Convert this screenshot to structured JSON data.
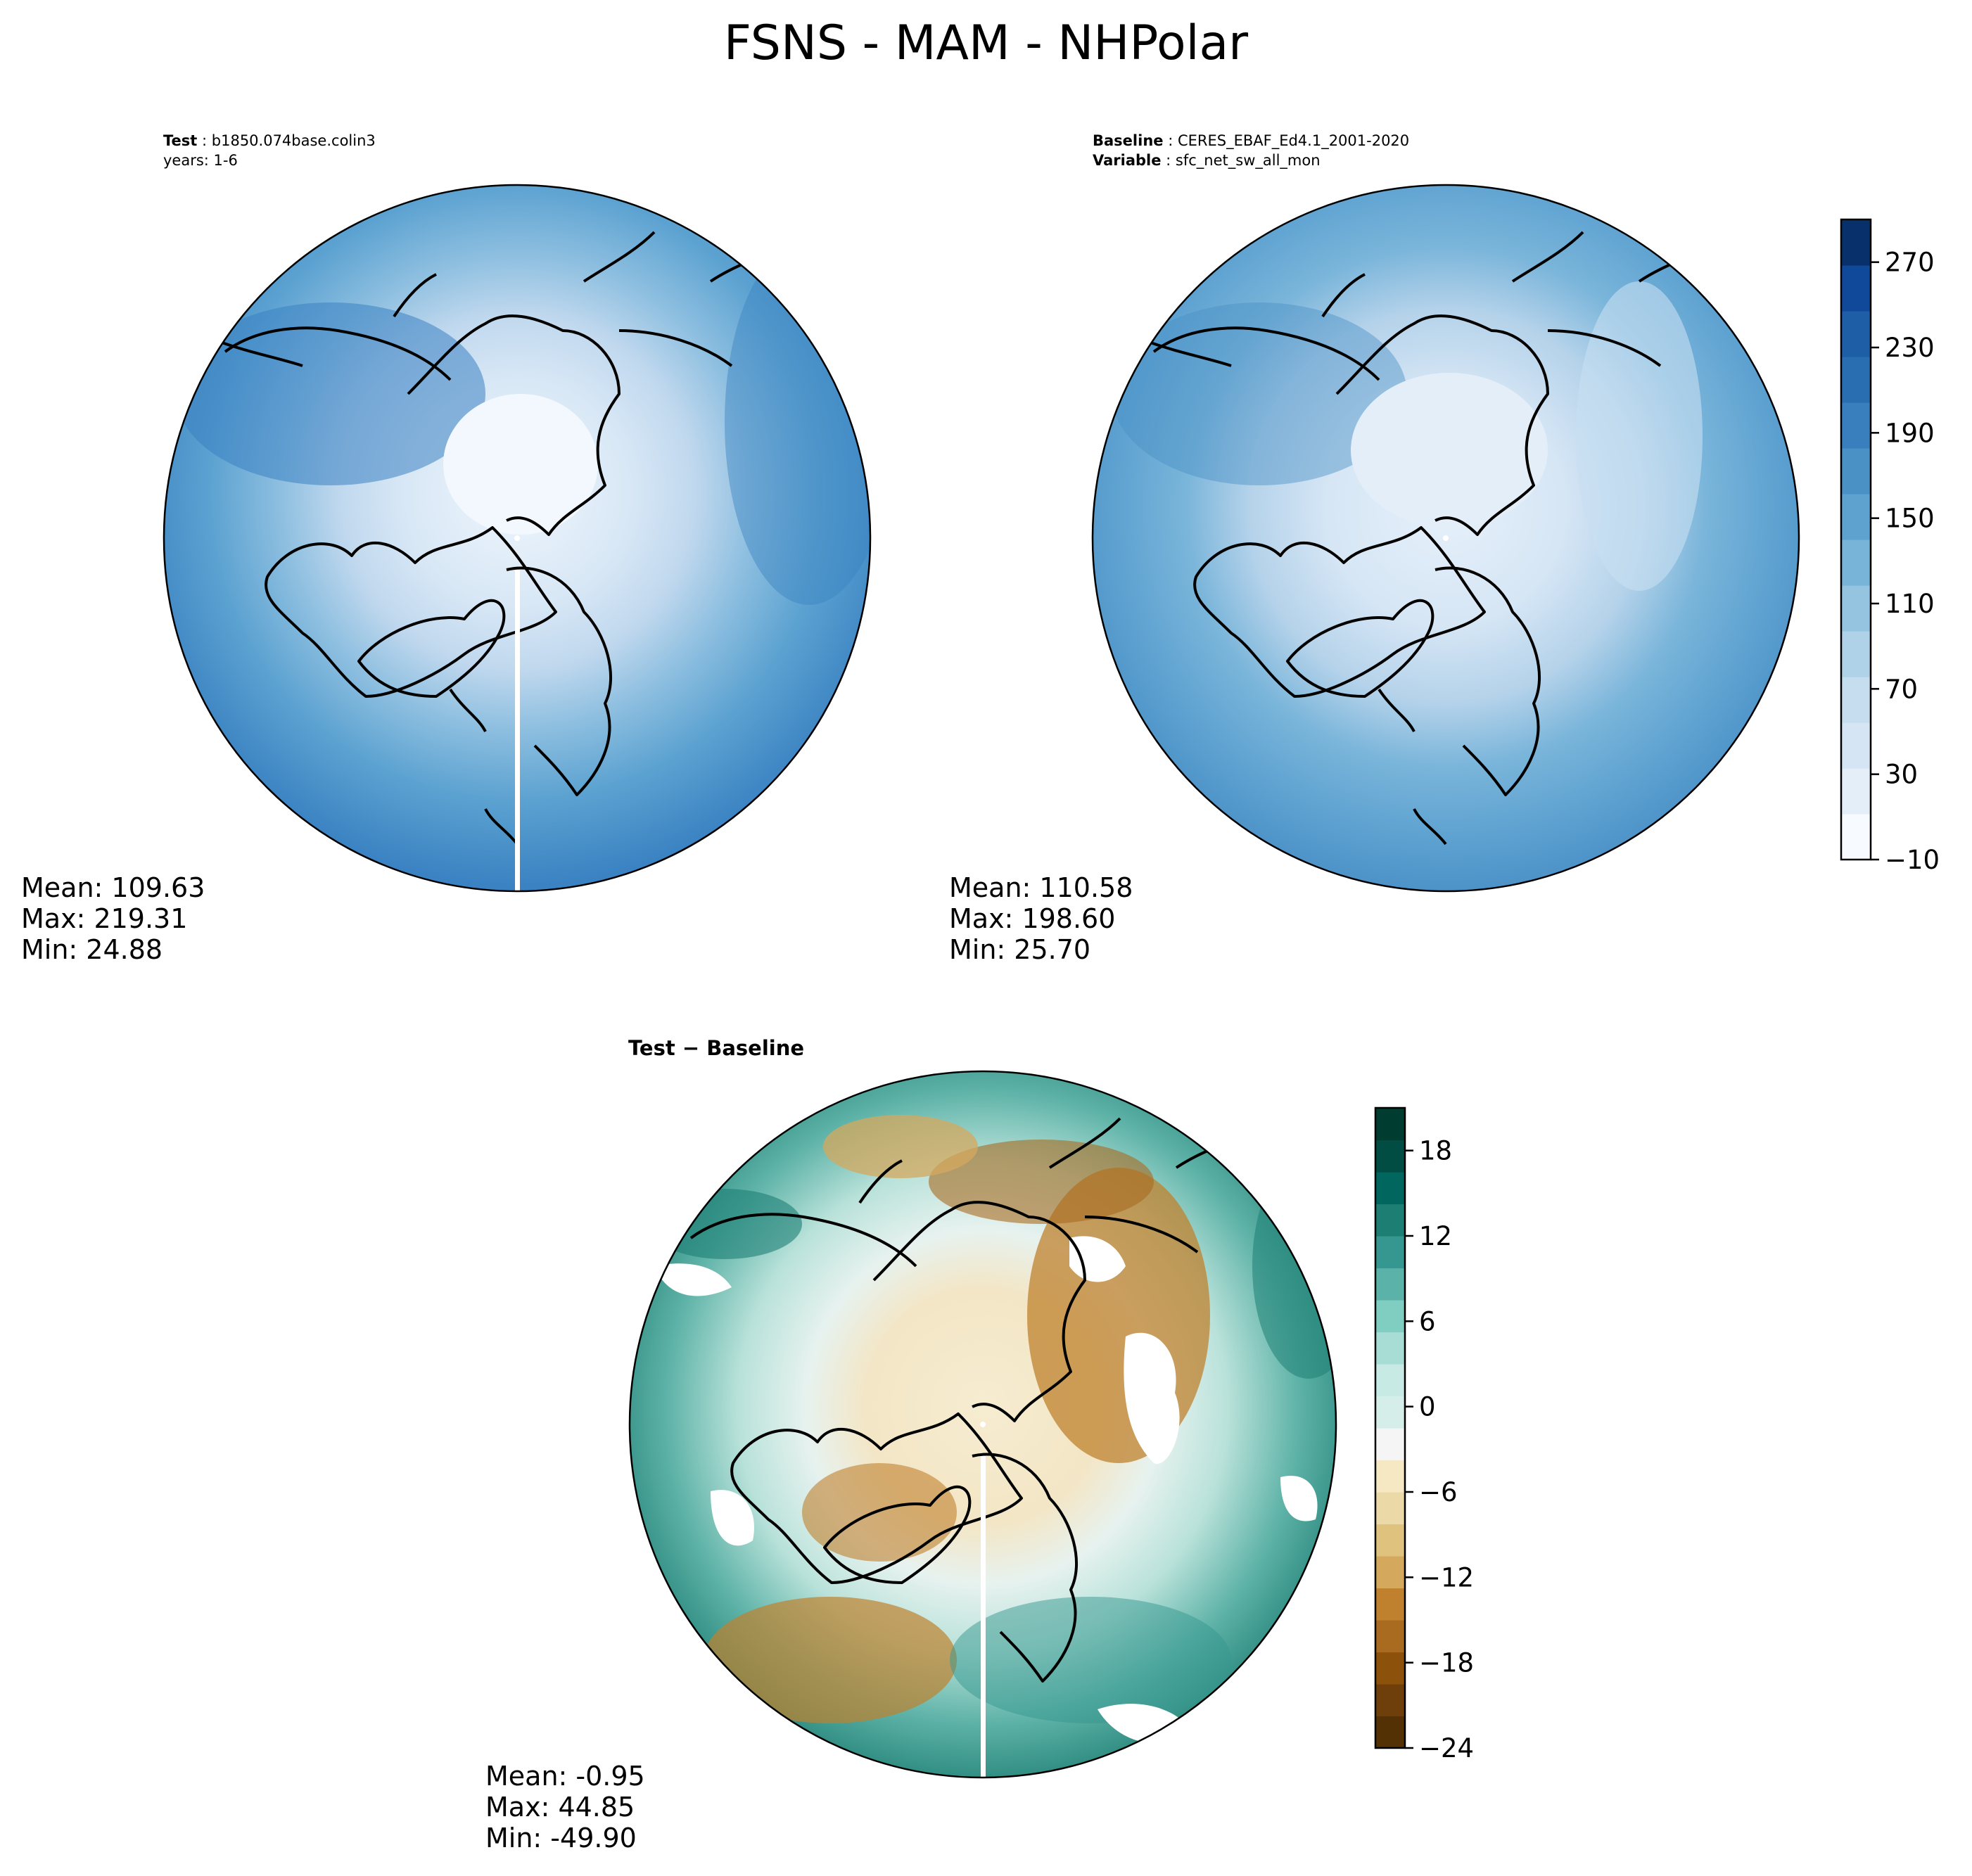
{
  "figure_title": "FSNS - MAM - NHPolar",
  "panels": {
    "test": {
      "label_key": "Test",
      "label_value": "b1850.074base.colin3",
      "line2": "years: 1-6",
      "stats": {
        "mean": "Mean: 109.63",
        "max": "Max: 219.31",
        "min": "Min: 24.88"
      }
    },
    "baseline": {
      "label_key": "Baseline",
      "label_value": "CERES_EBAF_Ed4.1_2001-2020",
      "line2_key": "Variable",
      "line2_value": "sfc_net_sw_all_mon",
      "stats": {
        "mean": "Mean: 110.58",
        "max": "Max: 198.60",
        "min": "Min: 25.70"
      }
    },
    "diff": {
      "title": "Test − Baseline",
      "stats": {
        "mean": "Mean: -0.95",
        "max": "Max: 44.85",
        "min": "Min: -49.90"
      }
    }
  },
  "colors": {
    "blues": [
      "#f7fbff",
      "#e3eef9",
      "#d5e5f4",
      "#c6dcef",
      "#b0d2e8",
      "#95c4e0",
      "#78b3d8",
      "#5ea3d0",
      "#4a91c6",
      "#3a7fbd",
      "#2a6eb2",
      "#1d5ea7",
      "#11499a",
      "#08306b"
    ],
    "brbg": [
      "#543005",
      "#6f3f0b",
      "#8c510a",
      "#a96b1f",
      "#bf812d",
      "#d4a85d",
      "#dfc27d",
      "#ecd9a8",
      "#f6e8c3",
      "#f5f5f5",
      "#d6eee9",
      "#c7eae5",
      "#a8ddd5",
      "#80cdc1",
      "#5ab2a8",
      "#35978f",
      "#1d7f74",
      "#01665e",
      "#014d43",
      "#003c30"
    ],
    "land_outline": "#000000"
  },
  "chart_data": [
    {
      "type": "heatmap",
      "projection": "north-polar-stereographic",
      "title": "Test",
      "colormap": "Blues",
      "stats": {
        "mean": 109.63,
        "max": 219.31,
        "min": 24.88
      },
      "colorbar": {
        "ticks": [
          -10,
          30,
          70,
          110,
          150,
          190,
          230,
          270
        ],
        "range": [
          -10,
          290
        ]
      }
    },
    {
      "type": "heatmap",
      "projection": "north-polar-stereographic",
      "title": "Baseline",
      "colormap": "Blues",
      "stats": {
        "mean": 110.58,
        "max": 198.6,
        "min": 25.7
      },
      "colorbar": {
        "ticks": [
          -10,
          30,
          70,
          110,
          150,
          190,
          230,
          270
        ],
        "range": [
          -10,
          290
        ]
      }
    },
    {
      "type": "heatmap",
      "projection": "north-polar-stereographic",
      "title": "Test − Baseline",
      "colormap": "BrBG",
      "stats": {
        "mean": -0.95,
        "max": 44.85,
        "min": -49.9
      },
      "colorbar": {
        "ticks": [
          -24,
          -18,
          -12,
          -6,
          0,
          6,
          12,
          18
        ],
        "range": [
          -24,
          21
        ]
      }
    }
  ]
}
